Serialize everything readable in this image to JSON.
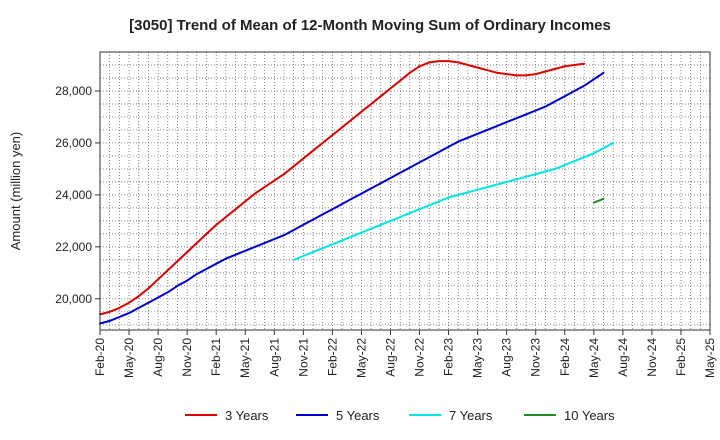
{
  "chart_data": {
    "type": "line",
    "title": "[3050]  Trend of Mean of 12-Month Moving Sum of Ordinary Incomes",
    "xlabel": "",
    "ylabel": "Amount (million yen)",
    "x_tick_labels": [
      "Feb-20",
      "May-20",
      "Aug-20",
      "Nov-20",
      "Feb-21",
      "May-21",
      "Aug-21",
      "Nov-21",
      "Feb-22",
      "May-22",
      "Aug-22",
      "Nov-22",
      "Feb-23",
      "May-23",
      "Aug-23",
      "Nov-23",
      "Feb-24",
      "May-24",
      "Aug-24",
      "Nov-24",
      "Feb-25",
      "May-25"
    ],
    "y_ticks": [
      20000,
      22000,
      24000,
      26000,
      28000
    ],
    "y_tick_labels": [
      "20,000",
      "22,000",
      "24,000",
      "26,000",
      "28,000"
    ],
    "ylim": [
      18800,
      29500
    ],
    "grid": true,
    "legend_position": "bottom",
    "series": [
      {
        "name": "3 Years",
        "color": "#dd0000",
        "points": [
          [
            0,
            19400
          ],
          [
            1,
            19500
          ],
          [
            2,
            19650
          ],
          [
            3,
            19850
          ],
          [
            4,
            20100
          ],
          [
            5,
            20400
          ],
          [
            6,
            20750
          ],
          [
            7,
            21100
          ],
          [
            8,
            21450
          ],
          [
            9,
            21800
          ],
          [
            10,
            22150
          ],
          [
            11,
            22500
          ],
          [
            12,
            22850
          ],
          [
            13,
            23150
          ],
          [
            14,
            23450
          ],
          [
            15,
            23750
          ],
          [
            16,
            24050
          ],
          [
            17,
            24300
          ],
          [
            18,
            24550
          ],
          [
            19,
            24800
          ],
          [
            20,
            25100
          ],
          [
            21,
            25400
          ],
          [
            22,
            25700
          ],
          [
            23,
            26000
          ],
          [
            24,
            26300
          ],
          [
            25,
            26600
          ],
          [
            26,
            26900
          ],
          [
            27,
            27200
          ],
          [
            28,
            27500
          ],
          [
            29,
            27800
          ],
          [
            30,
            28100
          ],
          [
            31,
            28400
          ],
          [
            32,
            28700
          ],
          [
            33,
            28950
          ],
          [
            34,
            29100
          ],
          [
            35,
            29150
          ],
          [
            36,
            29150
          ],
          [
            37,
            29100
          ],
          [
            38,
            29000
          ],
          [
            39,
            28900
          ],
          [
            40,
            28800
          ],
          [
            41,
            28700
          ],
          [
            42,
            28650
          ],
          [
            43,
            28600
          ],
          [
            44,
            28600
          ],
          [
            45,
            28650
          ],
          [
            46,
            28750
          ],
          [
            47,
            28850
          ],
          [
            48,
            28950
          ],
          [
            49,
            29000
          ],
          [
            50,
            29050
          ]
        ]
      },
      {
        "name": "5 Years",
        "color": "#0000cc",
        "points": [
          [
            0,
            19050
          ],
          [
            1,
            19150
          ],
          [
            2,
            19300
          ],
          [
            3,
            19450
          ],
          [
            4,
            19650
          ],
          [
            5,
            19850
          ],
          [
            6,
            20050
          ],
          [
            7,
            20250
          ],
          [
            8,
            20500
          ],
          [
            9,
            20700
          ],
          [
            10,
            20950
          ],
          [
            11,
            21150
          ],
          [
            12,
            21350
          ],
          [
            13,
            21550
          ],
          [
            14,
            21700
          ],
          [
            15,
            21850
          ],
          [
            16,
            22000
          ],
          [
            17,
            22150
          ],
          [
            18,
            22300
          ],
          [
            19,
            22450
          ],
          [
            20,
            22650
          ],
          [
            21,
            22850
          ],
          [
            22,
            23050
          ],
          [
            23,
            23250
          ],
          [
            24,
            23450
          ],
          [
            25,
            23650
          ],
          [
            26,
            23850
          ],
          [
            27,
            24050
          ],
          [
            28,
            24250
          ],
          [
            29,
            24450
          ],
          [
            30,
            24650
          ],
          [
            31,
            24850
          ],
          [
            32,
            25050
          ],
          [
            33,
            25250
          ],
          [
            34,
            25450
          ],
          [
            35,
            25650
          ],
          [
            36,
            25850
          ],
          [
            37,
            26050
          ],
          [
            38,
            26200
          ],
          [
            39,
            26350
          ],
          [
            40,
            26500
          ],
          [
            41,
            26650
          ],
          [
            42,
            26800
          ],
          [
            43,
            26950
          ],
          [
            44,
            27100
          ],
          [
            45,
            27250
          ],
          [
            46,
            27400
          ],
          [
            47,
            27600
          ],
          [
            48,
            27800
          ],
          [
            49,
            28000
          ],
          [
            50,
            28200
          ],
          [
            51,
            28450
          ],
          [
            52,
            28700
          ]
        ]
      },
      {
        "name": "7 Years",
        "color": "#00e5e5",
        "points": [
          [
            20,
            21500
          ],
          [
            21,
            21650
          ],
          [
            22,
            21800
          ],
          [
            23,
            21950
          ],
          [
            24,
            22100
          ],
          [
            25,
            22250
          ],
          [
            26,
            22400
          ],
          [
            27,
            22550
          ],
          [
            28,
            22700
          ],
          [
            29,
            22850
          ],
          [
            30,
            23000
          ],
          [
            31,
            23150
          ],
          [
            32,
            23300
          ],
          [
            33,
            23450
          ],
          [
            34,
            23600
          ],
          [
            35,
            23750
          ],
          [
            36,
            23900
          ],
          [
            37,
            24000
          ],
          [
            38,
            24100
          ],
          [
            39,
            24200
          ],
          [
            40,
            24300
          ],
          [
            41,
            24400
          ],
          [
            42,
            24500
          ],
          [
            43,
            24600
          ],
          [
            44,
            24700
          ],
          [
            45,
            24800
          ],
          [
            46,
            24900
          ],
          [
            47,
            25000
          ],
          [
            48,
            25150
          ],
          [
            49,
            25300
          ],
          [
            50,
            25450
          ],
          [
            51,
            25600
          ],
          [
            52,
            25800
          ],
          [
            53,
            26000
          ]
        ]
      },
      {
        "name": "10 Years",
        "color": "#228b22",
        "points": [
          [
            51,
            23700
          ],
          [
            52,
            23850
          ]
        ]
      }
    ]
  }
}
